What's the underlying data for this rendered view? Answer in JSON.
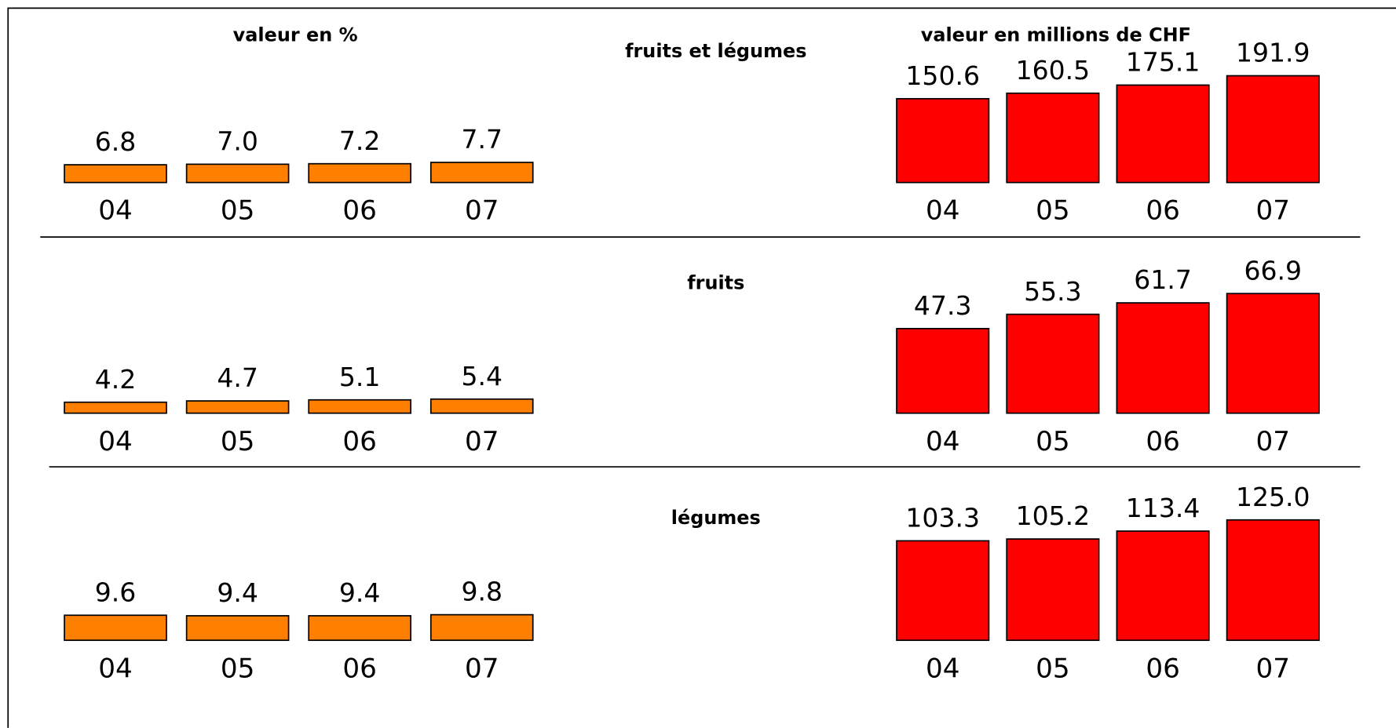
{
  "column_headers": [
    "valeur en %",
    "valeur en millions de CHF"
  ],
  "chart_data": [
    {
      "type": "bar",
      "categories": [
        "04",
        "05",
        "06",
        "07"
      ],
      "values": [
        6.8,
        7.0,
        7.2,
        7.7
      ],
      "value_labels": [
        "6.8",
        "7.0",
        "7.2",
        "7.7"
      ],
      "color": "#ff8000",
      "ylim": [
        0,
        48
      ]
    },
    {
      "type": "bar",
      "title": "fruits et légumes",
      "categories": [
        "04",
        "05",
        "06",
        "07"
      ],
      "values": [
        150.6,
        160.5,
        175.1,
        191.9
      ],
      "value_labels": [
        "150.6",
        "160.5",
        "175.1",
        "191.9"
      ],
      "color": "#ff0000",
      "ylim": [
        0,
        225
      ]
    },
    {
      "type": "bar",
      "categories": [
        "04",
        "05",
        "06",
        "07"
      ],
      "values": [
        4.2,
        4.7,
        5.1,
        5.4
      ],
      "value_labels": [
        "4.2",
        "4.7",
        "5.1",
        "5.4"
      ],
      "color": "#ff8000",
      "ylim": [
        0,
        48
      ]
    },
    {
      "type": "bar",
      "title": "fruits",
      "categories": [
        "04",
        "05",
        "06",
        "07"
      ],
      "values": [
        47.3,
        55.3,
        61.7,
        66.9
      ],
      "value_labels": [
        "47.3",
        "55.3",
        "61.7",
        "66.9"
      ],
      "color": "#ff0000",
      "ylim": [
        0,
        70
      ]
    },
    {
      "type": "bar",
      "categories": [
        "04",
        "05",
        "06",
        "07"
      ],
      "values": [
        9.6,
        9.4,
        9.4,
        9.8
      ],
      "value_labels": [
        "9.6",
        "9.4",
        "9.4",
        "9.8"
      ],
      "color": "#ff8000",
      "ylim": [
        0,
        48
      ]
    },
    {
      "type": "bar",
      "title": "légumes",
      "categories": [
        "04",
        "05",
        "06",
        "07"
      ],
      "values": [
        103.3,
        105.2,
        113.4,
        125.0
      ],
      "value_labels": [
        "103.3",
        "105.2",
        "113.4",
        "125.0"
      ],
      "color": "#ff0000",
      "ylim": [
        0,
        130
      ]
    }
  ]
}
